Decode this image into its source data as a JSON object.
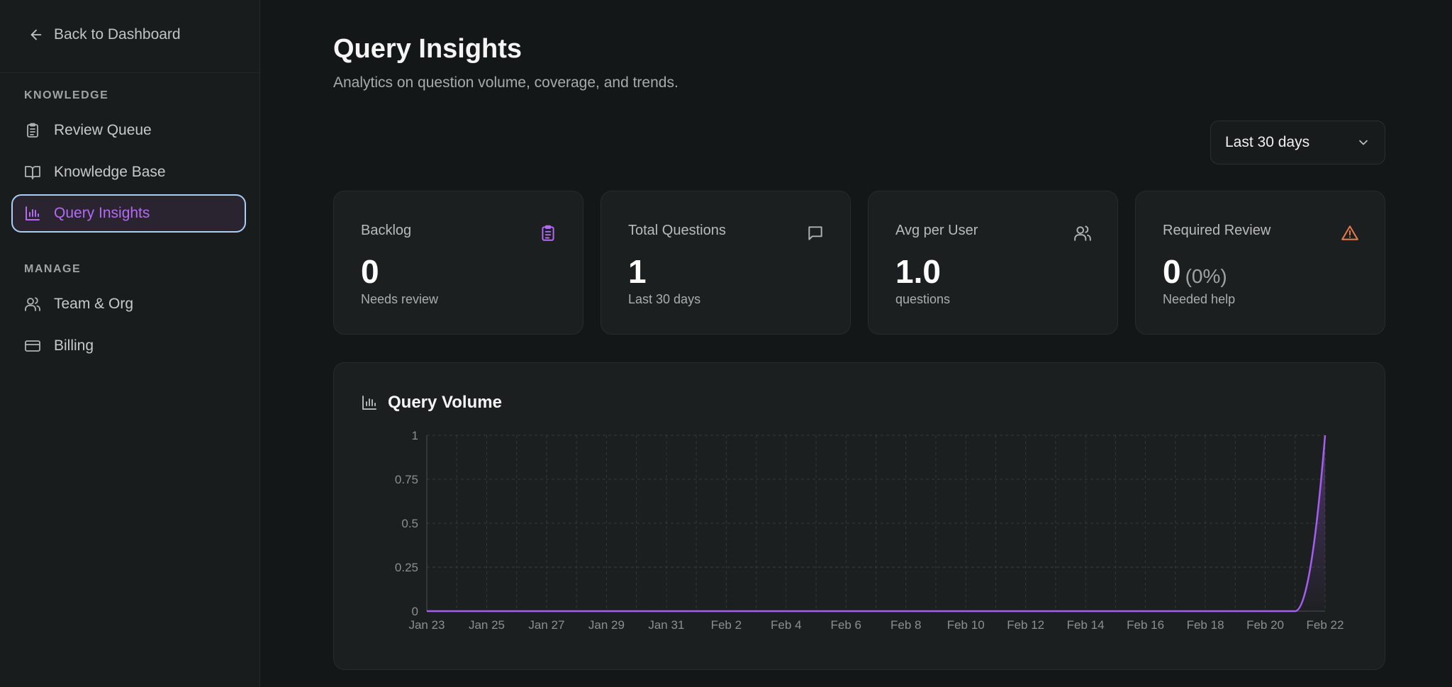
{
  "sidebar": {
    "back_label": "Back to Dashboard",
    "sections": [
      {
        "label": "KNOWLEDGE"
      },
      {
        "label": "MANAGE"
      }
    ],
    "items": [
      {
        "label": "Review Queue",
        "icon": "clipboard-icon"
      },
      {
        "label": "Knowledge Base",
        "icon": "book-icon"
      },
      {
        "label": "Query Insights",
        "icon": "bar-chart-icon",
        "active": true
      },
      {
        "label": "Team & Org",
        "icon": "users-icon"
      },
      {
        "label": "Billing",
        "icon": "credit-card-icon"
      }
    ]
  },
  "header": {
    "title": "Query Insights",
    "subtitle": "Analytics on question volume, coverage, and trends."
  },
  "range_select": {
    "value": "Last 30 days"
  },
  "stats": [
    {
      "label": "Backlog",
      "value": "0",
      "sub": "Needs review",
      "icon": "clipboard-icon"
    },
    {
      "label": "Total Questions",
      "value": "1",
      "sub": "Last 30 days",
      "icon": "message-icon"
    },
    {
      "label": "Avg per User",
      "value": "1.0",
      "sub": "questions",
      "icon": "users-icon"
    },
    {
      "label": "Required Review",
      "value": "0",
      "pct": "(0%)",
      "sub": "Needed help",
      "icon": "alert-triangle-icon"
    }
  ],
  "colors": {
    "accent": "#b46bf2",
    "line": "#a55ef0",
    "warning": "#e2794a",
    "active_border": "#a9cdf5"
  },
  "chart": {
    "title": "Query Volume"
  },
  "chart_data": {
    "type": "area",
    "title": "Query Volume",
    "xlabel": "",
    "ylabel": "",
    "x": [
      "Jan 23",
      "Jan 24",
      "Jan 25",
      "Jan 26",
      "Jan 27",
      "Jan 28",
      "Jan 29",
      "Jan 30",
      "Jan 31",
      "Feb 1",
      "Feb 2",
      "Feb 3",
      "Feb 4",
      "Feb 5",
      "Feb 6",
      "Feb 7",
      "Feb 8",
      "Feb 9",
      "Feb 10",
      "Feb 11",
      "Feb 12",
      "Feb 13",
      "Feb 14",
      "Feb 15",
      "Feb 16",
      "Feb 17",
      "Feb 18",
      "Feb 19",
      "Feb 20",
      "Feb 21",
      "Feb 22"
    ],
    "x_tick_labels": [
      "Jan 23",
      "Jan 25",
      "Jan 27",
      "Jan 29",
      "Jan 31",
      "Feb 2",
      "Feb 4",
      "Feb 6",
      "Feb 8",
      "Feb 10",
      "Feb 12",
      "Feb 14",
      "Feb 16",
      "Feb 18",
      "Feb 20",
      "Feb 22"
    ],
    "y_tick_labels": [
      "0",
      "0.25",
      "0.5",
      "0.75",
      "1"
    ],
    "ylim": [
      0,
      1
    ],
    "grid": true,
    "series": [
      {
        "values": [
          0,
          0,
          0,
          0,
          0,
          0,
          0,
          0,
          0,
          0,
          0,
          0,
          0,
          0,
          0,
          0,
          0,
          0,
          0,
          0,
          0,
          0,
          0,
          0,
          0,
          0,
          0,
          0,
          0,
          0,
          1
        ]
      }
    ]
  }
}
